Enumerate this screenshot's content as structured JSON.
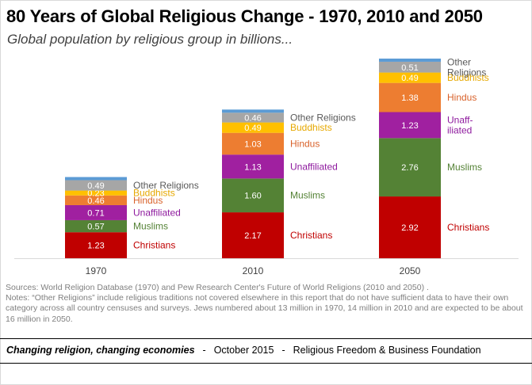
{
  "title": "80 Years of Global Religious Change - 1970, 2010 and 2050",
  "subtitle": "Global population by religious group in billions...",
  "chart_data": {
    "type": "bar",
    "stacked": true,
    "title": "80 Years of Global Religious Change - 1970, 2010 and 2050",
    "ylabel": "Global population by religious group in billions",
    "categories": [
      "1970",
      "2010",
      "2050"
    ],
    "series": [
      {
        "name": "Christians",
        "color": "#c00000",
        "text_color": "#c00000",
        "values": [
          1.23,
          2.17,
          2.92
        ]
      },
      {
        "name": "Muslims",
        "color": "#548235",
        "text_color": "#548235",
        "values": [
          0.57,
          1.6,
          2.76
        ]
      },
      {
        "name": "Unaffiliated",
        "color": "#a020a0",
        "text_color": "#8e1a9e",
        "values": [
          0.71,
          1.13,
          1.23
        ]
      },
      {
        "name": "Hindus",
        "color": "#ed7d31",
        "text_color": "#d9622b",
        "values": [
          0.46,
          1.03,
          1.38
        ]
      },
      {
        "name": "Buddhists",
        "color": "#ffc000",
        "text_color": "#e6a800",
        "values": [
          0.23,
          0.49,
          0.49
        ]
      },
      {
        "name": "Other Religions",
        "color": "#a6a6a6",
        "text_color": "#595959",
        "values": [
          0.49,
          0.46,
          0.51
        ]
      },
      {
        "name": "Jews",
        "color": "#5b9bd5",
        "text_color": "#5b9bd5",
        "values": [
          0.013,
          0.014,
          0.016
        ],
        "unlabeled": true
      }
    ],
    "value_labels": [
      [
        "1.23",
        "2.17",
        "2.92"
      ],
      [
        "0.57",
        "1.60",
        "2.76"
      ],
      [
        "0.71",
        "1.13",
        "1.23"
      ],
      [
        "0.46",
        "1.03",
        "1.38"
      ],
      [
        "0.23",
        "0.49",
        "0.49"
      ],
      [
        "0.49",
        "0.46",
        "0.51"
      ]
    ],
    "series_labels": [
      [
        "Christians",
        "Christians",
        "Christians"
      ],
      [
        "Muslims",
        "Muslims",
        "Muslims"
      ],
      [
        "Unaffiliated",
        "Unaffiliated",
        "Unaff-|iliated"
      ],
      [
        "Hindus",
        "Hindus",
        "Hindus"
      ],
      [
        "Buddhists",
        "Buddhists",
        "Buddhists"
      ],
      [
        "Other Religions",
        "Other Religions",
        "Other|Religions"
      ]
    ],
    "ylim": [
      0,
      9.0
    ],
    "grid": false,
    "legend": "inline-right"
  },
  "notes": {
    "sources": "Sources: World Religion Database (1970) and Pew Research Center's Future of World Religions (2010 and 2050) .",
    "other": "Notes: “Other Religions” include religious traditions not covered elsewhere in this report that do not have sufficient data to have their own category across all country censuses and surveys. Jews numbered  about 13 million in 1970, 14 million in 2010 and are expected to be about 16 million in 2050."
  },
  "footer": {
    "publication": "Changing religion, changing economies",
    "date": "October 2015",
    "org": "Religious Freedom & Business Foundation",
    "separator": "-"
  }
}
